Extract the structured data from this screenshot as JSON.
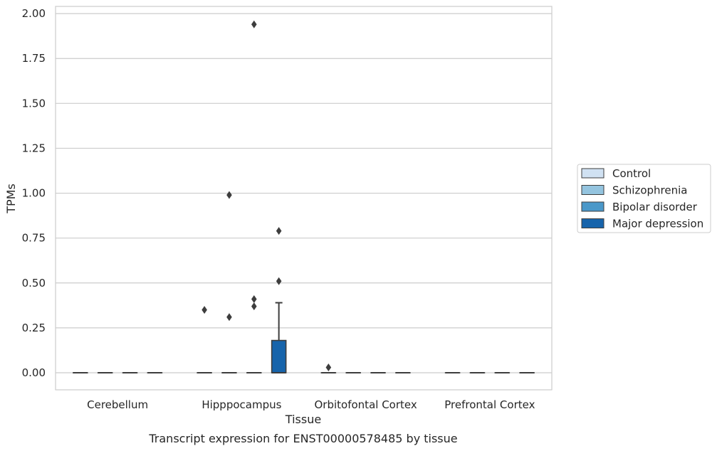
{
  "chart_data": {
    "type": "box",
    "caption": "Transcript expression for ENST00000578485 by tissue",
    "xlabel": "Tissue",
    "ylabel": "TPMs",
    "ylim": [
      -0.095,
      2.04
    ],
    "yticks": [
      "0.00",
      "0.25",
      "0.50",
      "0.75",
      "1.00",
      "1.25",
      "1.50",
      "1.75",
      "2.00"
    ],
    "ytick_values": [
      0,
      0.25,
      0.5,
      0.75,
      1.0,
      1.25,
      1.5,
      1.75,
      2.0
    ],
    "grid": "horizontal",
    "legend_placement": "right",
    "categories": [
      "Cerebellum",
      "Hipppocampus",
      "Orbitofontal Cortex",
      "Prefrontal Cortex"
    ],
    "series": [
      {
        "name": "Control",
        "color": "#d0e1f2",
        "boxes": [
          {
            "q1": 0,
            "median": 0,
            "q3": 0,
            "whisker_low": 0,
            "whisker_high": 0,
            "outliers": []
          },
          {
            "q1": 0,
            "median": 0,
            "q3": 0,
            "whisker_low": 0,
            "whisker_high": 0,
            "outliers": [
              0.35
            ]
          },
          {
            "q1": 0,
            "median": 0,
            "q3": 0,
            "whisker_low": 0,
            "whisker_high": 0,
            "outliers": [
              0.03
            ]
          },
          {
            "q1": 0,
            "median": 0,
            "q3": 0,
            "whisker_low": 0,
            "whisker_high": 0,
            "outliers": []
          }
        ]
      },
      {
        "name": "Schizophrenia",
        "color": "#94c4df",
        "boxes": [
          {
            "q1": 0,
            "median": 0,
            "q3": 0,
            "whisker_low": 0,
            "whisker_high": 0,
            "outliers": []
          },
          {
            "q1": 0,
            "median": 0,
            "q3": 0,
            "whisker_low": 0,
            "whisker_high": 0,
            "outliers": [
              0.99,
              0.31
            ]
          },
          {
            "q1": 0,
            "median": 0,
            "q3": 0,
            "whisker_low": 0,
            "whisker_high": 0,
            "outliers": []
          },
          {
            "q1": 0,
            "median": 0,
            "q3": 0,
            "whisker_low": 0,
            "whisker_high": 0,
            "outliers": []
          }
        ]
      },
      {
        "name": "Bipolar disorder",
        "color": "#4a98c9",
        "boxes": [
          {
            "q1": 0,
            "median": 0,
            "q3": 0,
            "whisker_low": 0,
            "whisker_high": 0,
            "outliers": []
          },
          {
            "q1": 0,
            "median": 0,
            "q3": 0,
            "whisker_low": 0,
            "whisker_high": 0,
            "outliers": [
              1.94,
              0.41,
              0.37
            ]
          },
          {
            "q1": 0,
            "median": 0,
            "q3": 0,
            "whisker_low": 0,
            "whisker_high": 0,
            "outliers": []
          },
          {
            "q1": 0,
            "median": 0,
            "q3": 0,
            "whisker_low": 0,
            "whisker_high": 0,
            "outliers": []
          }
        ]
      },
      {
        "name": "Major depression",
        "color": "#1764ab",
        "boxes": [
          {
            "q1": 0,
            "median": 0,
            "q3": 0,
            "whisker_low": 0,
            "whisker_high": 0,
            "outliers": []
          },
          {
            "q1": 0,
            "median": 0,
            "q3": 0.18,
            "whisker_low": 0,
            "whisker_high": 0.39,
            "outliers": [
              0.79,
              0.51
            ]
          },
          {
            "q1": 0,
            "median": 0,
            "q3": 0,
            "whisker_low": 0,
            "whisker_high": 0,
            "outliers": []
          },
          {
            "q1": 0,
            "median": 0,
            "q3": 0,
            "whisker_low": 0,
            "whisker_high": 0,
            "outliers": []
          }
        ]
      }
    ]
  }
}
